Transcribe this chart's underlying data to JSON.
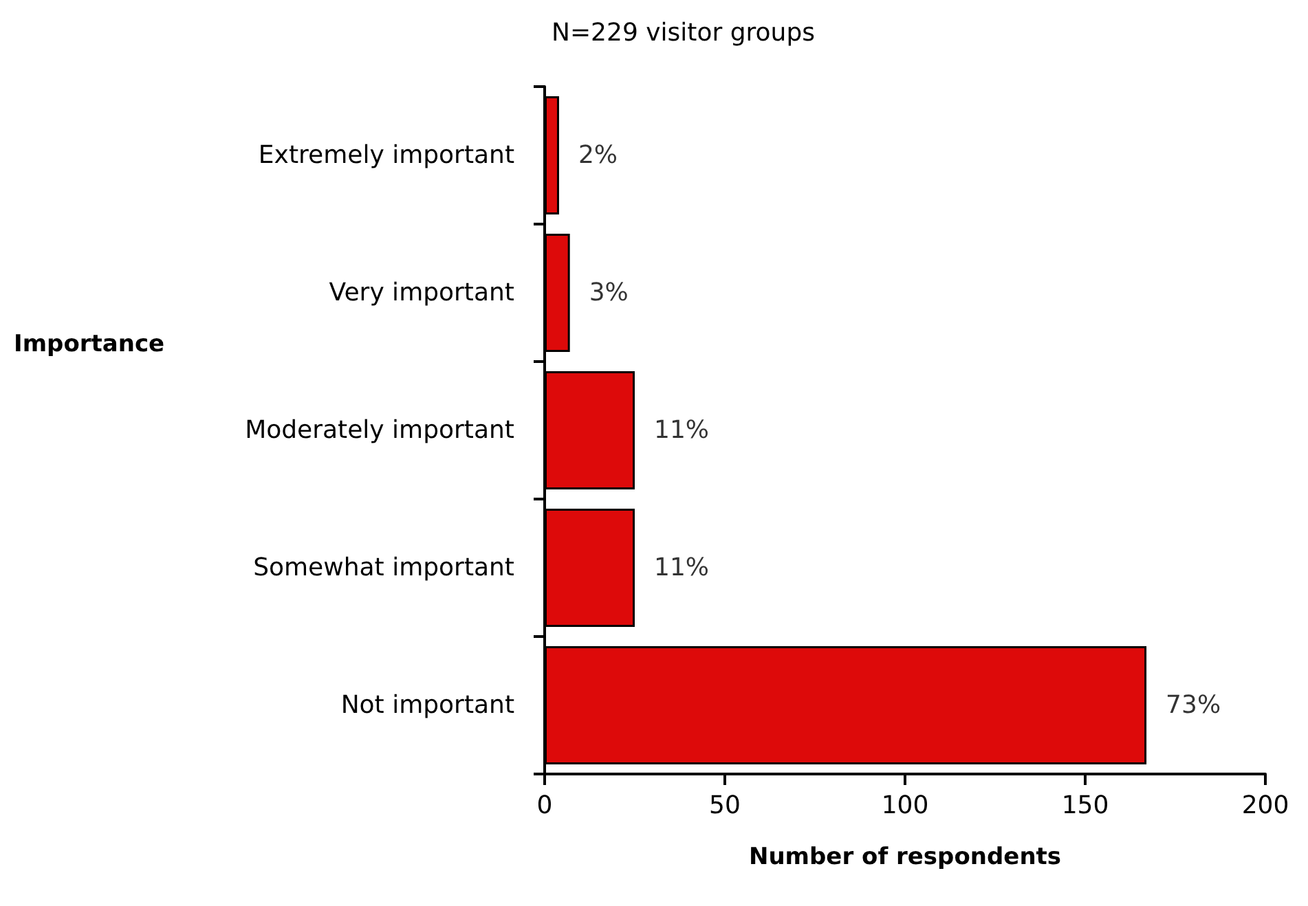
{
  "chart_data": {
    "type": "bar",
    "orientation": "horizontal",
    "title": "N=229 visitor groups",
    "xlabel": "Number of respondents",
    "ylabel": "Importance",
    "categories": [
      "Extremely important",
      "Very important",
      "Moderately important",
      "Somewhat important",
      "Not important"
    ],
    "values": [
      4,
      7,
      25,
      25,
      167
    ],
    "annotations": [
      {
        "text": "2%",
        "x": 4,
        "y": "Extremely important"
      },
      {
        "text": "3%",
        "x": 7,
        "y": "Very important"
      },
      {
        "text": "11%",
        "x": 25,
        "y": "Moderately important"
      },
      {
        "text": "11%",
        "x": 25,
        "y": "Somewhat important"
      },
      {
        "text": "73%",
        "x": 167,
        "y": "Not important"
      }
    ],
    "color": "#dd0a0a",
    "xlim": [
      0,
      200
    ],
    "xticks": [
      0,
      50,
      100,
      150,
      200
    ],
    "grid": false
  }
}
